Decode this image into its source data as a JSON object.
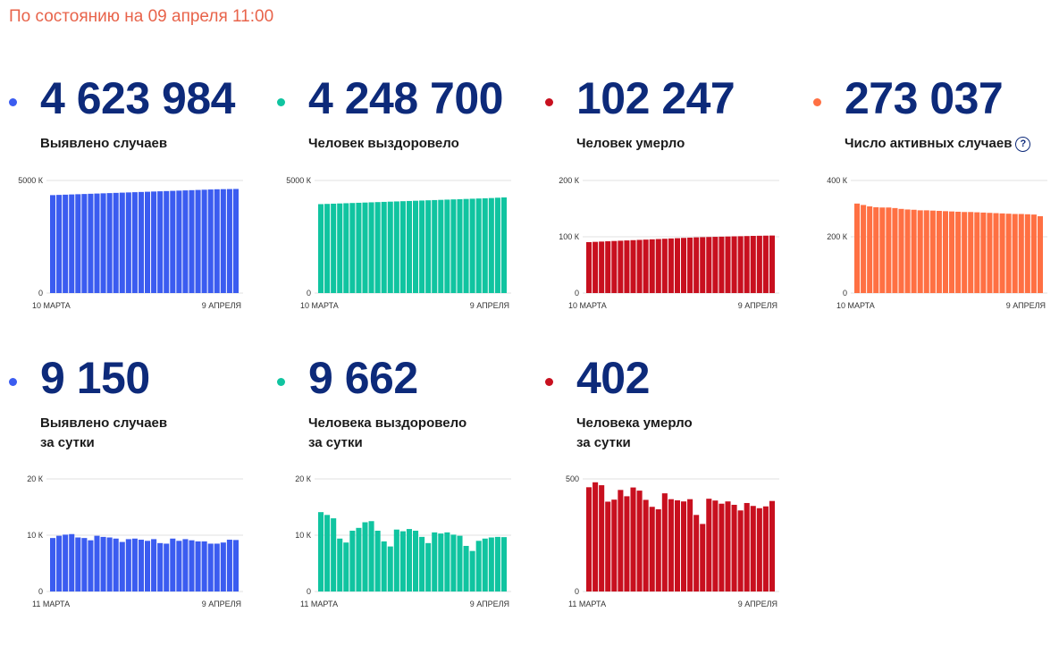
{
  "status_line": "По состоянию на 09 апреля 11:00",
  "colors": {
    "blue": "#3b5cf0",
    "green": "#10c4a0",
    "red": "#c8101f",
    "orange": "#ff7043",
    "number": "#0d2a7a",
    "status": "#e8634a"
  },
  "cards": [
    {
      "number": "4 623 984",
      "label": "Выявлено случаев",
      "label2": "",
      "color": "#3b5cf0",
      "help": ""
    },
    {
      "number": "4 248 700",
      "label": "Человек выздоровело",
      "label2": "",
      "color": "#10c4a0",
      "help": ""
    },
    {
      "number": "102 247",
      "label": "Человек умерло",
      "label2": "",
      "color": "#c8101f",
      "help": ""
    },
    {
      "number": "273 037",
      "label": "Число активных случаев",
      "label2": "",
      "color": "#ff7043",
      "help": "?"
    },
    {
      "number": "9 150",
      "label": "Выявлено случаев",
      "label2": "за сутки",
      "color": "#3b5cf0",
      "help": ""
    },
    {
      "number": "9 662",
      "label": "Человека выздоровело",
      "label2": "за сутки",
      "color": "#10c4a0",
      "help": ""
    },
    {
      "number": "402",
      "label": "Человека умерло",
      "label2": "за сутки",
      "color": "#c8101f",
      "help": ""
    }
  ],
  "chart_data": [
    {
      "type": "bar",
      "color": "#3b5cf0",
      "ylim": [
        0,
        5000
      ],
      "yticks": [
        "5000 К",
        "0"
      ],
      "ytick_values": [
        5000,
        0
      ],
      "xtick_start": "10 МАРТА",
      "xtick_end": "9 АПРЕЛЯ",
      "values": [
        4350,
        4360,
        4370,
        4380,
        4390,
        4400,
        4410,
        4420,
        4430,
        4440,
        4450,
        4460,
        4470,
        4480,
        4490,
        4500,
        4510,
        4520,
        4530,
        4540,
        4550,
        4560,
        4570,
        4580,
        4590,
        4600,
        4610,
        4615,
        4620,
        4624
      ]
    },
    {
      "type": "bar",
      "color": "#10c4a0",
      "ylim": [
        0,
        5000
      ],
      "yticks": [
        "5000 К",
        "0"
      ],
      "ytick_values": [
        5000,
        0
      ],
      "xtick_start": "10 МАРТА",
      "xtick_end": "9 АПРЕЛЯ",
      "values": [
        3950,
        3960,
        3970,
        3980,
        3990,
        4000,
        4010,
        4020,
        4030,
        4040,
        4050,
        4060,
        4070,
        4080,
        4090,
        4100,
        4110,
        4120,
        4130,
        4140,
        4150,
        4160,
        4170,
        4180,
        4190,
        4200,
        4210,
        4220,
        4235,
        4249
      ]
    },
    {
      "type": "bar",
      "color": "#c8101f",
      "ylim": [
        0,
        200
      ],
      "yticks": [
        "200 К",
        "100 К",
        "0"
      ],
      "ytick_values": [
        200,
        100,
        0
      ],
      "xtick_start": "10 МАРТА",
      "xtick_end": "9 АПРЕЛЯ",
      "values": [
        90.5,
        91,
        91.5,
        92,
        92.5,
        93,
        93.5,
        94,
        94.5,
        95,
        95.5,
        96,
        96.5,
        97,
        97.5,
        98,
        98.5,
        99,
        99.3,
        99.6,
        99.9,
        100.2,
        100.5,
        100.8,
        101,
        101.3,
        101.6,
        101.8,
        102,
        102.2
      ]
    },
    {
      "type": "bar",
      "color": "#ff7043",
      "ylim": [
        0,
        400
      ],
      "yticks": [
        "400 К",
        "200 К",
        "0"
      ],
      "ytick_values": [
        400,
        200,
        0
      ],
      "xtick_start": "10 МАРТА",
      "xtick_end": "9 АПРЕЛЯ",
      "values": [
        318,
        313,
        308,
        305,
        304,
        304,
        302,
        299,
        297,
        296,
        294,
        294,
        293,
        292,
        291,
        290,
        289,
        288,
        288,
        287,
        286,
        285,
        284,
        283,
        282,
        281,
        281,
        280,
        279,
        273
      ]
    },
    {
      "type": "bar",
      "color": "#3b5cf0",
      "ylim": [
        0,
        20
      ],
      "yticks": [
        "20 К",
        "10 К",
        "0"
      ],
      "ytick_values": [
        20,
        10,
        0
      ],
      "xtick_start": "11 МАРТА",
      "xtick_end": "9 АПРЕЛЯ",
      "values": [
        9.5,
        9.9,
        10.1,
        10.2,
        9.6,
        9.5,
        9.1,
        9.9,
        9.7,
        9.6,
        9.4,
        8.8,
        9.3,
        9.4,
        9.2,
        9.0,
        9.3,
        8.6,
        8.5,
        9.4,
        9.0,
        9.3,
        9.1,
        8.9,
        8.9,
        8.5,
        8.5,
        8.7,
        9.2,
        9.15
      ]
    },
    {
      "type": "bar",
      "color": "#10c4a0",
      "ylim": [
        0,
        20
      ],
      "yticks": [
        "20 К",
        "10 К",
        "0"
      ],
      "ytick_values": [
        20,
        10,
        0
      ],
      "xtick_start": "11 МАРТА",
      "xtick_end": "9 АПРЕЛЯ",
      "values": [
        14.1,
        13.6,
        13.0,
        9.4,
        8.7,
        10.8,
        11.3,
        12.3,
        12.5,
        10.8,
        8.9,
        8.0,
        11.0,
        10.7,
        11.1,
        10.8,
        9.7,
        8.6,
        10.5,
        10.3,
        10.5,
        10.1,
        9.9,
        8.1,
        7.2,
        9.0,
        9.4,
        9.6,
        9.7,
        9.66
      ]
    },
    {
      "type": "bar",
      "color": "#c8101f",
      "ylim": [
        0,
        500
      ],
      "yticks": [
        "500",
        "0"
      ],
      "ytick_values": [
        500,
        0
      ],
      "xtick_start": "11 МАРТА",
      "xtick_end": "9 АПРЕЛЯ",
      "values": [
        463,
        485,
        472,
        399,
        408,
        451,
        423,
        462,
        448,
        407,
        376,
        365,
        436,
        410,
        405,
        400,
        410,
        340,
        300,
        412,
        404,
        390,
        400,
        385,
        360,
        393,
        380,
        370,
        378,
        402
      ]
    }
  ]
}
